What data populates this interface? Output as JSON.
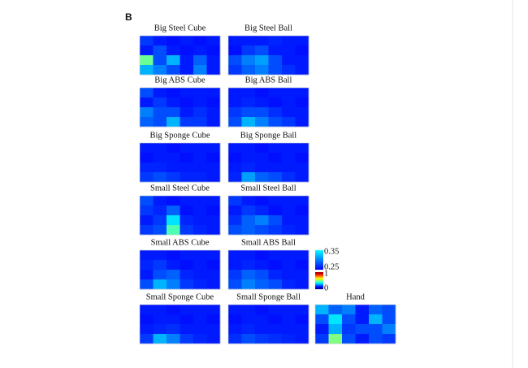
{
  "chart_data": {
    "type": "heatmap",
    "label": "B",
    "colormap": "jet",
    "zlim": [
      0,
      1
    ],
    "colorbar": {
      "upper_ticks": [
        0.35,
        0.25
      ],
      "lower_ticks": [
        1,
        0
      ]
    },
    "panels": [
      {
        "title": "Big Steel Cube",
        "values": [
          [
            0.18,
            0.15,
            0.14,
            0.15,
            0.14,
            0.15
          ],
          [
            0.15,
            0.2,
            0.15,
            0.14,
            0.15,
            0.14
          ],
          [
            0.48,
            0.2,
            0.3,
            0.15,
            0.22,
            0.15
          ],
          [
            0.3,
            0.25,
            0.2,
            0.15,
            0.25,
            0.15
          ]
        ]
      },
      {
        "title": "Big Steel Ball",
        "values": [
          [
            0.15,
            0.15,
            0.15,
            0.16,
            0.15,
            0.15
          ],
          [
            0.14,
            0.18,
            0.2,
            0.15,
            0.15,
            0.14
          ],
          [
            0.2,
            0.25,
            0.28,
            0.2,
            0.15,
            0.15
          ],
          [
            0.18,
            0.22,
            0.25,
            0.2,
            0.17,
            0.15
          ]
        ]
      },
      {
        "title": "Big ABS Cube",
        "values": [
          [
            0.2,
            0.15,
            0.14,
            0.15,
            0.15,
            0.15
          ],
          [
            0.15,
            0.18,
            0.15,
            0.14,
            0.15,
            0.14
          ],
          [
            0.25,
            0.2,
            0.2,
            0.15,
            0.17,
            0.15
          ],
          [
            0.22,
            0.2,
            0.3,
            0.18,
            0.18,
            0.15
          ]
        ]
      },
      {
        "title": "Big ABS Ball",
        "values": [
          [
            0.15,
            0.15,
            0.14,
            0.15,
            0.15,
            0.15
          ],
          [
            0.15,
            0.16,
            0.15,
            0.14,
            0.15,
            0.14
          ],
          [
            0.18,
            0.2,
            0.2,
            0.17,
            0.15,
            0.15
          ],
          [
            0.2,
            0.3,
            0.25,
            0.2,
            0.18,
            0.15
          ]
        ]
      },
      {
        "title": "Big Sponge Cube",
        "values": [
          [
            0.15,
            0.15,
            0.14,
            0.15,
            0.15,
            0.15
          ],
          [
            0.14,
            0.15,
            0.15,
            0.14,
            0.15,
            0.14
          ],
          [
            0.16,
            0.16,
            0.15,
            0.15,
            0.15,
            0.15
          ],
          [
            0.18,
            0.2,
            0.18,
            0.16,
            0.16,
            0.15
          ]
        ]
      },
      {
        "title": "Big Sponge Ball",
        "values": [
          [
            0.15,
            0.15,
            0.14,
            0.15,
            0.15,
            0.15
          ],
          [
            0.14,
            0.15,
            0.15,
            0.14,
            0.15,
            0.14
          ],
          [
            0.15,
            0.16,
            0.15,
            0.15,
            0.15,
            0.15
          ],
          [
            0.16,
            0.28,
            0.22,
            0.2,
            0.17,
            0.15
          ]
        ]
      },
      {
        "title": "Small Steel Cube",
        "values": [
          [
            0.2,
            0.15,
            0.14,
            0.15,
            0.15,
            0.15
          ],
          [
            0.18,
            0.16,
            0.22,
            0.14,
            0.15,
            0.14
          ],
          [
            0.15,
            0.18,
            0.35,
            0.16,
            0.15,
            0.15
          ],
          [
            0.18,
            0.2,
            0.45,
            0.18,
            0.16,
            0.15
          ]
        ]
      },
      {
        "title": "Small Steel Ball",
        "values": [
          [
            0.18,
            0.15,
            0.14,
            0.15,
            0.15,
            0.15
          ],
          [
            0.15,
            0.18,
            0.16,
            0.14,
            0.15,
            0.14
          ],
          [
            0.17,
            0.22,
            0.25,
            0.2,
            0.15,
            0.15
          ],
          [
            0.2,
            0.22,
            0.2,
            0.18,
            0.16,
            0.15
          ]
        ]
      },
      {
        "title": "Small ABS Cube",
        "values": [
          [
            0.15,
            0.15,
            0.14,
            0.15,
            0.15,
            0.15
          ],
          [
            0.16,
            0.18,
            0.15,
            0.14,
            0.15,
            0.14
          ],
          [
            0.15,
            0.2,
            0.22,
            0.16,
            0.15,
            0.15
          ],
          [
            0.2,
            0.3,
            0.25,
            0.18,
            0.16,
            0.15
          ]
        ]
      },
      {
        "title": "Small ABS Ball",
        "values": [
          [
            0.15,
            0.15,
            0.14,
            0.15,
            0.15,
            0.15
          ],
          [
            0.15,
            0.16,
            0.15,
            0.14,
            0.15,
            0.14
          ],
          [
            0.18,
            0.22,
            0.2,
            0.16,
            0.15,
            0.15
          ],
          [
            0.2,
            0.25,
            0.22,
            0.2,
            0.16,
            0.15
          ]
        ]
      },
      {
        "title": "Small Sponge Cube",
        "values": [
          [
            0.15,
            0.15,
            0.14,
            0.15,
            0.15,
            0.15
          ],
          [
            0.14,
            0.15,
            0.15,
            0.14,
            0.15,
            0.14
          ],
          [
            0.15,
            0.16,
            0.17,
            0.15,
            0.15,
            0.15
          ],
          [
            0.18,
            0.3,
            0.25,
            0.18,
            0.16,
            0.15
          ]
        ]
      },
      {
        "title": "Small Sponge Ball",
        "values": [
          [
            0.15,
            0.15,
            0.14,
            0.15,
            0.15,
            0.15
          ],
          [
            0.14,
            0.15,
            0.15,
            0.14,
            0.15,
            0.14
          ],
          [
            0.15,
            0.16,
            0.15,
            0.15,
            0.15,
            0.15
          ],
          [
            0.17,
            0.2,
            0.18,
            0.17,
            0.16,
            0.15
          ]
        ]
      },
      {
        "title": "Hand",
        "values": [
          [
            0.3,
            0.22,
            0.25,
            0.15,
            0.22,
            0.2
          ],
          [
            0.2,
            0.35,
            0.2,
            0.15,
            0.3,
            0.2
          ],
          [
            0.15,
            0.3,
            0.18,
            0.2,
            0.2,
            0.25
          ],
          [
            0.18,
            0.5,
            0.2,
            0.15,
            0.2,
            0.18
          ]
        ]
      }
    ]
  }
}
